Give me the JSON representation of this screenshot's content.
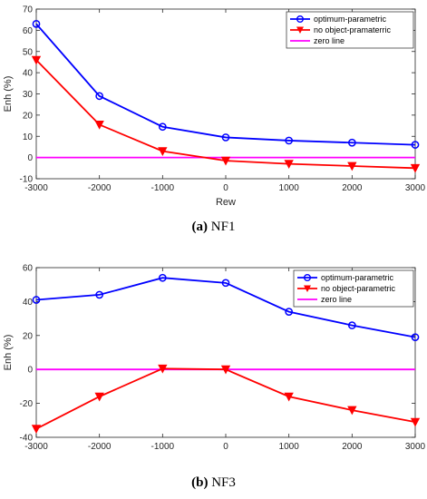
{
  "chart_data": [
    {
      "type": "line",
      "caption_letter": "(a)",
      "caption_text": "NF1",
      "xlabel": "Rew",
      "ylabel": "Enh (%)",
      "x": [
        -3000,
        -2000,
        -1000,
        0,
        1000,
        2000,
        3000
      ],
      "xlim": [
        -3000,
        3000
      ],
      "ylim": [
        -10,
        70
      ],
      "xticks": [
        -3000,
        -2000,
        -1000,
        0,
        1000,
        2000,
        3000
      ],
      "yticks": [
        -10,
        0,
        10,
        20,
        30,
        40,
        50,
        60,
        70
      ],
      "grid": false,
      "legend_position": "top-right",
      "series": [
        {
          "name": "optimum-parametric",
          "values": [
            63,
            29,
            14.5,
            9.5,
            8,
            7,
            6
          ],
          "color": "#0000ff",
          "marker": "circle"
        },
        {
          "name": "no object-pramaterric",
          "values": [
            46,
            15.5,
            3,
            -1.5,
            -3,
            -4,
            -5
          ],
          "color": "#ff0000",
          "marker": "triangle-down"
        },
        {
          "name": "zero line",
          "values": [
            0,
            0,
            0,
            0,
            0,
            0,
            0
          ],
          "color": "#ff00ff",
          "marker": "none"
        }
      ]
    },
    {
      "type": "line",
      "caption_letter": "(b)",
      "caption_text": "NF3",
      "xlabel": "",
      "ylabel": "Enh (%)",
      "x": [
        -3000,
        -2000,
        -1000,
        0,
        1000,
        2000,
        3000
      ],
      "xlim": [
        -3000,
        3000
      ],
      "ylim": [
        -40,
        60
      ],
      "xticks": [
        -3000,
        -2000,
        -1000,
        0,
        1000,
        2000,
        3000
      ],
      "yticks": [
        -40,
        -20,
        0,
        20,
        40,
        60
      ],
      "grid": false,
      "legend_position": "top-right",
      "series": [
        {
          "name": "optimum-parametric",
          "values": [
            41,
            44,
            54,
            51,
            34,
            26,
            19
          ],
          "color": "#0000ff",
          "marker": "circle"
        },
        {
          "name": "no object-parametric",
          "values": [
            -35,
            -16,
            0.5,
            0,
            -16,
            -24,
            -31
          ],
          "color": "#ff0000",
          "marker": "triangle-down"
        },
        {
          "name": "zero line",
          "values": [
            0,
            0,
            0,
            0,
            0,
            0,
            0
          ],
          "color": "#ff00ff",
          "marker": "none"
        }
      ]
    }
  ]
}
